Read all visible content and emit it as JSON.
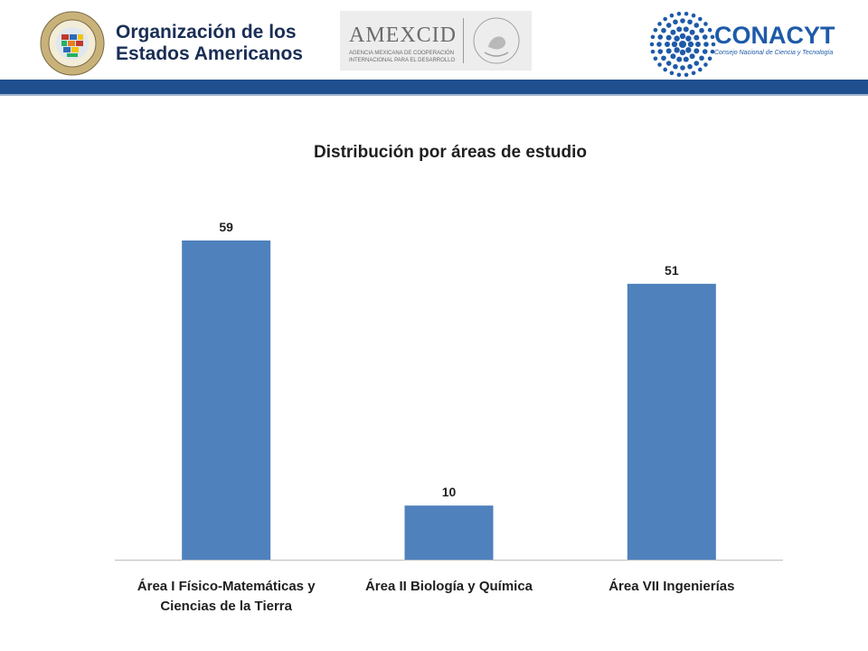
{
  "header": {
    "oas": {
      "line1": "Organización de los",
      "line2": "Estados Americanos",
      "seal_text": "ORGANIZACIÓN DE LOS ESTADOS AMERICANOS"
    },
    "amexcid": {
      "name": "AMEXCID",
      "sub1": "AGENCIA MEXICANA DE COOPERACIÓN",
      "sub2": "INTERNACIONAL PARA EL DESARROLLO",
      "seal_text": "ESTADOS UNIDOS MEXICANOS"
    },
    "conacyt": {
      "name": "CONACYT",
      "subtitle": "Consejo Nacional de Ciencia y Tecnología"
    }
  },
  "colors": {
    "band": "#1f4f8f",
    "bar": "#4f81bd",
    "text": "#1f1f1f"
  },
  "chart_data": {
    "type": "bar",
    "title": "Distribución por áreas de estudio",
    "categories": [
      "Área I Físico-Matemáticas y Ciencias de la Tierra",
      "Área II Biología y Química",
      "Área VII Ingenierías"
    ],
    "category_lines": [
      [
        "Área I Físico-Matemáticas y",
        "Ciencias de la Tierra"
      ],
      [
        "Área II Biología y Química"
      ],
      [
        "Área VII Ingenierías"
      ]
    ],
    "values": [
      59,
      10,
      51
    ],
    "data_labels": [
      "59",
      "10",
      "51"
    ],
    "ylim": [
      0,
      60
    ],
    "grid": false,
    "legend": "none"
  }
}
